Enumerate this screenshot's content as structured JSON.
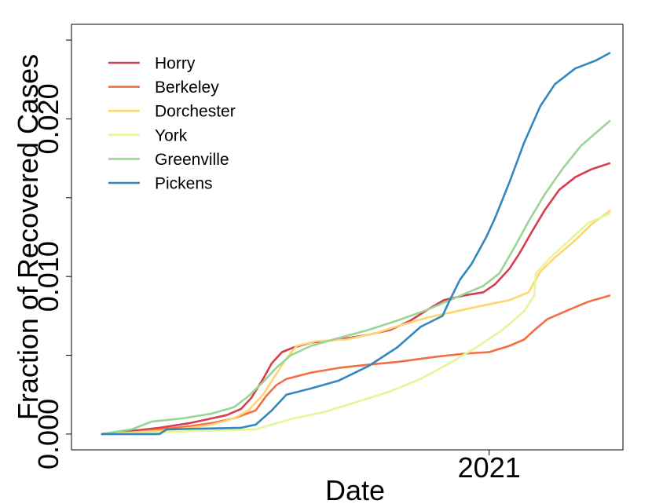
{
  "chart_data": {
    "type": "line",
    "xlabel": "Date",
    "ylabel": "Fraction of Recovered Cases",
    "ylim": [
      -0.001,
      0.026
    ],
    "y_ticks": [
      0.0,
      0.005,
      0.01,
      0.015,
      0.02,
      0.025
    ],
    "y_tick_labels": [
      "0.000",
      "",
      "0.010",
      "",
      "0.020",
      ""
    ],
    "x_range": [
      "2020-04-01",
      "2021-03-31"
    ],
    "x_ticks": [
      {
        "date": "2021-01-01",
        "label": "2021"
      }
    ],
    "legend_position": "top-left",
    "grid": false,
    "series": [
      {
        "name": "Horry",
        "color": "#d53e4f",
        "points": [
          [
            "2020-04-10",
            0.0
          ],
          [
            "2020-05-01",
            0.0002
          ],
          [
            "2020-05-20",
            0.0004
          ],
          [
            "2020-06-10",
            0.0007
          ],
          [
            "2020-06-25",
            0.001
          ],
          [
            "2020-07-05",
            0.0012
          ],
          [
            "2020-07-15",
            0.0016
          ],
          [
            "2020-07-22",
            0.0023
          ],
          [
            "2020-07-30",
            0.0035
          ],
          [
            "2020-08-05",
            0.0045
          ],
          [
            "2020-08-12",
            0.0052
          ],
          [
            "2020-08-20",
            0.0055
          ],
          [
            "2020-09-01",
            0.0058
          ],
          [
            "2020-09-20",
            0.006
          ],
          [
            "2020-10-10",
            0.0063
          ],
          [
            "2020-10-25",
            0.0066
          ],
          [
            "2020-11-08",
            0.0072
          ],
          [
            "2020-11-20",
            0.0079
          ],
          [
            "2020-12-01",
            0.0085
          ],
          [
            "2020-12-15",
            0.0088
          ],
          [
            "2020-12-28",
            0.009
          ],
          [
            "2021-01-05",
            0.0095
          ],
          [
            "2021-01-15",
            0.0105
          ],
          [
            "2021-01-22",
            0.0115
          ],
          [
            "2021-01-30",
            0.0128
          ],
          [
            "2021-02-08",
            0.0142
          ],
          [
            "2021-02-18",
            0.0155
          ],
          [
            "2021-03-01",
            0.0163
          ],
          [
            "2021-03-12",
            0.0168
          ],
          [
            "2021-03-25",
            0.0172
          ]
        ]
      },
      {
        "name": "Berkeley",
        "color": "#f46d43",
        "points": [
          [
            "2020-04-10",
            0.0
          ],
          [
            "2020-05-01",
            0.0001
          ],
          [
            "2020-05-20",
            0.0003
          ],
          [
            "2020-06-10",
            0.0005
          ],
          [
            "2020-06-25",
            0.0007
          ],
          [
            "2020-07-10",
            0.001
          ],
          [
            "2020-07-25",
            0.0015
          ],
          [
            "2020-08-01",
            0.0024
          ],
          [
            "2020-08-08",
            0.0031
          ],
          [
            "2020-08-15",
            0.0035
          ],
          [
            "2020-09-01",
            0.0039
          ],
          [
            "2020-09-20",
            0.0042
          ],
          [
            "2020-10-10",
            0.0044
          ],
          [
            "2020-11-01",
            0.0046
          ],
          [
            "2020-11-25",
            0.0049
          ],
          [
            "2020-12-15",
            0.0051
          ],
          [
            "2021-01-01",
            0.0052
          ],
          [
            "2021-01-15",
            0.0056
          ],
          [
            "2021-01-25",
            0.006
          ],
          [
            "2021-02-01",
            0.0066
          ],
          [
            "2021-02-10",
            0.0073
          ],
          [
            "2021-02-25",
            0.0079
          ],
          [
            "2021-03-10",
            0.0084
          ],
          [
            "2021-03-25",
            0.0088
          ]
        ]
      },
      {
        "name": "Dorchester",
        "color": "#fdd672",
        "points": [
          [
            "2020-04-10",
            0.0
          ],
          [
            "2020-05-01",
            0.0001
          ],
          [
            "2020-05-20",
            0.0002
          ],
          [
            "2020-06-10",
            0.0004
          ],
          [
            "2020-06-25",
            0.0006
          ],
          [
            "2020-07-10",
            0.001
          ],
          [
            "2020-07-20",
            0.0015
          ],
          [
            "2020-07-30",
            0.0025
          ],
          [
            "2020-08-08",
            0.0038
          ],
          [
            "2020-08-15",
            0.0048
          ],
          [
            "2020-08-22",
            0.0056
          ],
          [
            "2020-09-05",
            0.0059
          ],
          [
            "2020-09-25",
            0.006
          ],
          [
            "2020-10-15",
            0.0064
          ],
          [
            "2020-11-01",
            0.0069
          ],
          [
            "2020-11-20",
            0.0074
          ],
          [
            "2020-12-10",
            0.0078
          ],
          [
            "2020-12-30",
            0.0082
          ],
          [
            "2021-01-15",
            0.0085
          ],
          [
            "2021-01-28",
            0.009
          ],
          [
            "2021-02-05",
            0.0103
          ],
          [
            "2021-02-15",
            0.0112
          ],
          [
            "2021-03-01",
            0.0123
          ],
          [
            "2021-03-12",
            0.0133
          ],
          [
            "2021-03-25",
            0.0142
          ]
        ]
      },
      {
        "name": "York",
        "color": "#e6f598",
        "points": [
          [
            "2020-04-10",
            0.0
          ],
          [
            "2020-05-15",
            0.0001
          ],
          [
            "2020-06-15",
            0.0002
          ],
          [
            "2020-07-25",
            0.0003
          ],
          [
            "2020-08-05",
            0.0006
          ],
          [
            "2020-08-20",
            0.001
          ],
          [
            "2020-09-10",
            0.0014
          ],
          [
            "2020-10-01",
            0.002
          ],
          [
            "2020-10-25",
            0.0027
          ],
          [
            "2020-11-15",
            0.0035
          ],
          [
            "2020-12-05",
            0.0045
          ],
          [
            "2020-12-25",
            0.0056
          ],
          [
            "2021-01-10",
            0.0066
          ],
          [
            "2021-01-25",
            0.0078
          ],
          [
            "2021-02-01",
            0.0088
          ],
          [
            "2021-02-02",
            0.0102
          ],
          [
            "2021-02-12",
            0.0112
          ],
          [
            "2021-02-25",
            0.0123
          ],
          [
            "2021-03-10",
            0.0134
          ],
          [
            "2021-03-25",
            0.014
          ]
        ]
      },
      {
        "name": "Greenville",
        "color": "#99d594",
        "points": [
          [
            "2020-04-10",
            0.0
          ],
          [
            "2020-05-01",
            0.0003
          ],
          [
            "2020-05-15",
            0.0008
          ],
          [
            "2020-06-05",
            0.001
          ],
          [
            "2020-06-25",
            0.0013
          ],
          [
            "2020-07-10",
            0.0017
          ],
          [
            "2020-07-20",
            0.0024
          ],
          [
            "2020-07-30",
            0.0033
          ],
          [
            "2020-08-08",
            0.0042
          ],
          [
            "2020-08-18",
            0.005
          ],
          [
            "2020-09-01",
            0.0056
          ],
          [
            "2020-09-20",
            0.0061
          ],
          [
            "2020-10-10",
            0.0066
          ],
          [
            "2020-10-30",
            0.0072
          ],
          [
            "2020-11-20",
            0.0079
          ],
          [
            "2020-12-10",
            0.0087
          ],
          [
            "2020-12-28",
            0.0094
          ],
          [
            "2021-01-08",
            0.0102
          ],
          [
            "2021-01-18",
            0.0118
          ],
          [
            "2021-01-28",
            0.0135
          ],
          [
            "2021-02-08",
            0.0152
          ],
          [
            "2021-02-20",
            0.0168
          ],
          [
            "2021-03-05",
            0.0183
          ],
          [
            "2021-03-15",
            0.0191
          ],
          [
            "2021-03-25",
            0.0199
          ]
        ]
      },
      {
        "name": "Pickens",
        "color": "#3288bd",
        "points": [
          [
            "2020-04-10",
            0.0
          ],
          [
            "2020-05-20",
            0.0
          ],
          [
            "2020-05-25",
            0.0003
          ],
          [
            "2020-07-15",
            0.0004
          ],
          [
            "2020-07-25",
            0.0006
          ],
          [
            "2020-08-05",
            0.0015
          ],
          [
            "2020-08-15",
            0.0025
          ],
          [
            "2020-09-01",
            0.0029
          ],
          [
            "2020-09-20",
            0.0034
          ],
          [
            "2020-10-10",
            0.0043
          ],
          [
            "2020-10-30",
            0.0055
          ],
          [
            "2020-11-15",
            0.0068
          ],
          [
            "2020-11-30",
            0.0075
          ],
          [
            "2020-12-05",
            0.0085
          ],
          [
            "2020-12-12",
            0.0098
          ],
          [
            "2020-12-20",
            0.0108
          ],
          [
            "2020-12-30",
            0.0125
          ],
          [
            "2021-01-05",
            0.0137
          ],
          [
            "2021-01-15",
            0.016
          ],
          [
            "2021-01-25",
            0.0185
          ],
          [
            "2021-02-05",
            0.0208
          ],
          [
            "2021-02-15",
            0.0222
          ],
          [
            "2021-03-01",
            0.0232
          ],
          [
            "2021-03-15",
            0.0237
          ],
          [
            "2021-03-25",
            0.0242
          ]
        ]
      }
    ]
  }
}
